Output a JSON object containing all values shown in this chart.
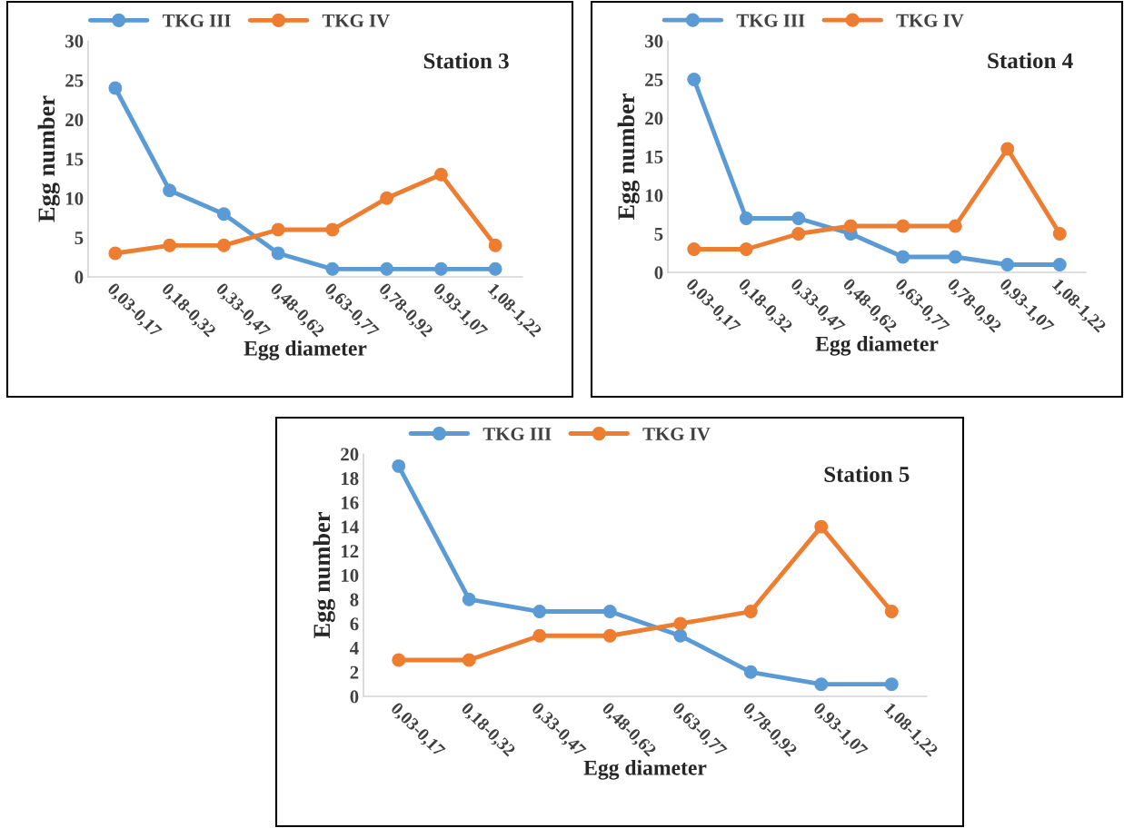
{
  "chart_data": [
    {
      "type": "line",
      "categories": [
        "0,03-0,17",
        "0,18-0,32",
        "0,33-0,47",
        "0,48-0,62",
        "0,63-0,77",
        "0,78-0,92",
        "0,93-1,07",
        "1,08-1,22"
      ],
      "xlabel": "Egg diameter",
      "ylabel": "Egg number",
      "annotations": [
        "Station 3"
      ],
      "ylim": [
        0,
        30
      ],
      "yticks": [
        0,
        5,
        10,
        15,
        20,
        25,
        30
      ],
      "grid": false,
      "legend": "top",
      "marker": "circle",
      "series": [
        {
          "name": "TKG III",
          "color": "#5b9bd5",
          "values": [
            24,
            11,
            8,
            3,
            1,
            1,
            1,
            1
          ]
        },
        {
          "name": "TKG IV",
          "color": "#ed7d31",
          "values": [
            3,
            4,
            4,
            6,
            6,
            10,
            13,
            4
          ]
        }
      ]
    },
    {
      "type": "line",
      "categories": [
        "0,03-0,17",
        "0,18-0,32",
        "0,33-0,47",
        "0,48-0,62",
        "0,63-0,77",
        "0,78-0,92",
        "0,93-1,07",
        "1,08-1,22"
      ],
      "xlabel": "Egg diameter",
      "ylabel": "Egg number",
      "annotations": [
        "Station 4"
      ],
      "ylim": [
        0,
        30
      ],
      "yticks": [
        0,
        5,
        10,
        15,
        20,
        25,
        30
      ],
      "grid": false,
      "legend": "top",
      "marker": "circle",
      "series": [
        {
          "name": "TKG III",
          "color": "#5b9bd5",
          "values": [
            25,
            7,
            7,
            5,
            2,
            2,
            1,
            1
          ]
        },
        {
          "name": "TKG IV",
          "color": "#ed7d31",
          "values": [
            3,
            3,
            5,
            6,
            6,
            6,
            16,
            5
          ]
        }
      ]
    },
    {
      "type": "line",
      "categories": [
        "0,03-0,17",
        "0,18-0,32",
        "0,33-0,47",
        "0,48-0,62",
        "0,63-0,77",
        "0,78-0,92",
        "0,93-1,07",
        "1,08-1,22"
      ],
      "xlabel": "Egg diameter",
      "ylabel": "Egg number",
      "annotations": [
        "Station 5"
      ],
      "ylim": [
        0,
        20
      ],
      "yticks": [
        0,
        2,
        4,
        6,
        8,
        10,
        12,
        14,
        16,
        18,
        20
      ],
      "grid": false,
      "legend": "top",
      "marker": "circle",
      "series": [
        {
          "name": "TKG III",
          "color": "#5b9bd5",
          "values": [
            19,
            8,
            7,
            7,
            5,
            2,
            1,
            1
          ]
        },
        {
          "name": "TKG IV",
          "color": "#ed7d31",
          "values": [
            3,
            3,
            5,
            5,
            6,
            7,
            14,
            7
          ]
        }
      ]
    }
  ]
}
